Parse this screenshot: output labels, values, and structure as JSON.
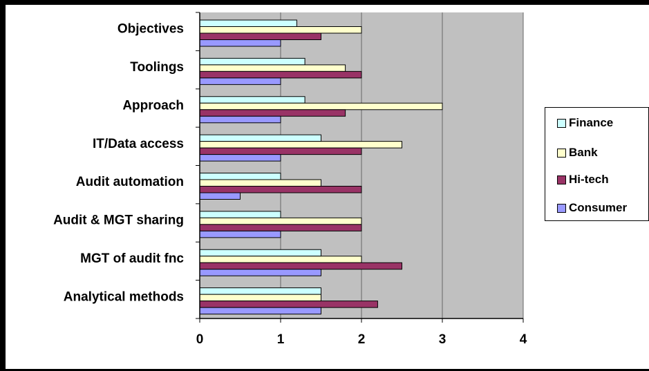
{
  "chart_data": {
    "type": "bar",
    "orientation": "horizontal",
    "categories": [
      "Objectives",
      "Toolings",
      "Approach",
      "IT/Data access",
      "Audit automation",
      "Audit & MGT sharing",
      "MGT of audit fnc",
      "Analytical methods"
    ],
    "series": [
      {
        "name": "Finance",
        "color": "#ccffff",
        "values": [
          1.2,
          1.3,
          1.3,
          1.5,
          1.0,
          1.0,
          1.5,
          1.5
        ]
      },
      {
        "name": "Bank",
        "color": "#ffffcc",
        "values": [
          2.0,
          1.8,
          3.0,
          2.5,
          1.5,
          2.0,
          2.0,
          1.5
        ]
      },
      {
        "name": "Hi-tech",
        "color": "#993366",
        "values": [
          1.5,
          2.0,
          1.8,
          2.0,
          2.0,
          2.0,
          2.5,
          2.2
        ]
      },
      {
        "name": "Consumer",
        "color": "#9999ff",
        "values": [
          1.0,
          1.0,
          1.0,
          1.0,
          0.5,
          1.0,
          1.5,
          1.5
        ]
      }
    ],
    "xlim": [
      0,
      4
    ],
    "xticks": [
      "0",
      "1",
      "2",
      "3",
      "4"
    ],
    "grid": true,
    "plot_background": "#c0c0c0",
    "legend_position": "right",
    "title": "",
    "xlabel": "",
    "ylabel": ""
  }
}
